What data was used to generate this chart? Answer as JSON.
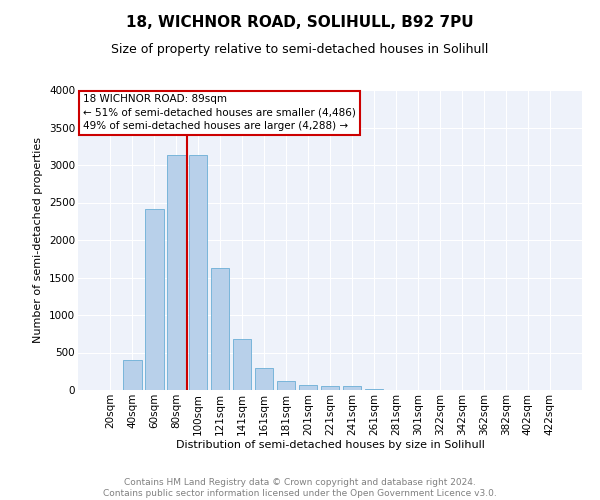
{
  "title": "18, WICHNOR ROAD, SOLIHULL, B92 7PU",
  "subtitle": "Size of property relative to semi-detached houses in Solihull",
  "xlabel": "Distribution of semi-detached houses by size in Solihull",
  "ylabel": "Number of semi-detached properties",
  "footer_line1": "Contains HM Land Registry data © Crown copyright and database right 2024.",
  "footer_line2": "Contains public sector information licensed under the Open Government Licence v3.0.",
  "annotation_line1": "18 WICHNOR ROAD: 89sqm",
  "annotation_line2": "← 51% of semi-detached houses are smaller (4,486)",
  "annotation_line3": "49% of semi-detached houses are larger (4,288) →",
  "bar_labels": [
    "20sqm",
    "40sqm",
    "60sqm",
    "80sqm",
    "100sqm",
    "121sqm",
    "141sqm",
    "161sqm",
    "181sqm",
    "201sqm",
    "221sqm",
    "241sqm",
    "261sqm",
    "281sqm",
    "301sqm",
    "322sqm",
    "342sqm",
    "362sqm",
    "382sqm",
    "402sqm",
    "422sqm"
  ],
  "bar_values": [
    5,
    400,
    2420,
    3140,
    3140,
    1630,
    680,
    300,
    120,
    65,
    55,
    50,
    20,
    0,
    0,
    0,
    0,
    0,
    0,
    0,
    0
  ],
  "bar_color": "#b8d0ea",
  "bar_edge_color": "#6aaed6",
  "vline_color": "#cc0000",
  "background_color": "#eef2fa",
  "grid_color": "#ffffff",
  "ylim": [
    0,
    4000
  ],
  "yticks": [
    0,
    500,
    1000,
    1500,
    2000,
    2500,
    3000,
    3500,
    4000
  ],
  "title_fontsize": 11,
  "subtitle_fontsize": 9,
  "ylabel_fontsize": 8,
  "xlabel_fontsize": 8,
  "footer_fontsize": 6.5,
  "tick_fontsize": 7.5,
  "annotation_fontsize": 7.5
}
